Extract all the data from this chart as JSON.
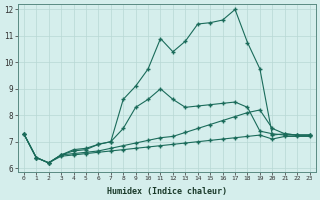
{
  "xlabel": "Humidex (Indice chaleur)",
  "bg_color": "#d5eeec",
  "line_color": "#1a6b5a",
  "grid_color": "#b8d8d5",
  "xlim": [
    -0.5,
    23.5
  ],
  "ylim": [
    5.85,
    12.2
  ],
  "yticks": [
    6,
    7,
    8,
    9,
    10,
    11,
    12
  ],
  "xticks": [
    0,
    1,
    2,
    3,
    4,
    5,
    6,
    7,
    8,
    9,
    10,
    11,
    12,
    13,
    14,
    15,
    16,
    17,
    18,
    19,
    20,
    21,
    22,
    23
  ],
  "series": [
    [
      7.3,
      6.4,
      6.2,
      6.5,
      6.7,
      6.75,
      6.9,
      7.0,
      8.6,
      9.1,
      9.75,
      10.9,
      10.4,
      10.8,
      11.45,
      11.5,
      11.6,
      12.0,
      10.75,
      9.75,
      7.25,
      7.3,
      7.25,
      7.25
    ],
    [
      7.3,
      6.4,
      6.2,
      6.5,
      6.65,
      6.7,
      6.9,
      7.0,
      7.5,
      8.3,
      8.6,
      9.0,
      8.6,
      8.3,
      8.35,
      8.4,
      8.45,
      8.5,
      8.3,
      7.4,
      7.3,
      7.25,
      7.25,
      7.25
    ],
    [
      7.3,
      6.4,
      6.2,
      6.5,
      6.55,
      6.6,
      6.65,
      6.75,
      6.85,
      6.95,
      7.05,
      7.15,
      7.2,
      7.35,
      7.5,
      7.65,
      7.8,
      7.95,
      8.1,
      8.2,
      7.5,
      7.3,
      7.25,
      7.25
    ],
    [
      7.3,
      6.4,
      6.2,
      6.45,
      6.5,
      6.55,
      6.6,
      6.65,
      6.7,
      6.75,
      6.8,
      6.85,
      6.9,
      6.95,
      7.0,
      7.05,
      7.1,
      7.15,
      7.2,
      7.25,
      7.1,
      7.2,
      7.2,
      7.2
    ]
  ]
}
